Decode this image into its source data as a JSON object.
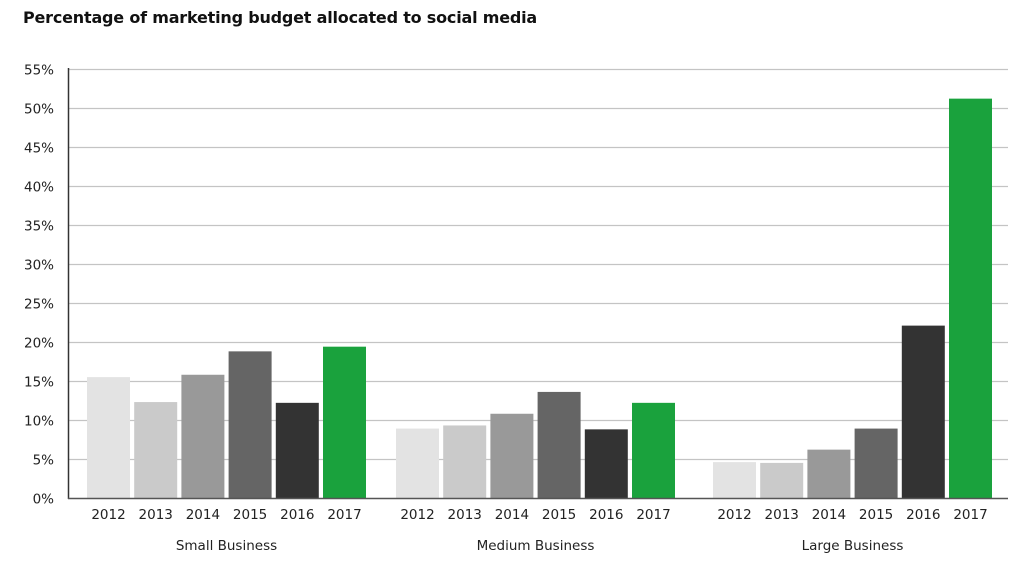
{
  "chart_data": {
    "type": "bar",
    "title": "Percentage of marketing budget allocated to social media",
    "xlabel": "",
    "ylabel": "",
    "ylim": [
      0,
      55
    ],
    "yticks": [
      0,
      5,
      10,
      15,
      20,
      25,
      30,
      35,
      40,
      45,
      50,
      55
    ],
    "ytick_labels": [
      "0%",
      "5%",
      "10%",
      "15%",
      "20%",
      "25%",
      "30%",
      "35%",
      "40%",
      "45%",
      "50%",
      "55%"
    ],
    "grid": true,
    "legend": "none",
    "categories": [
      "Small Business",
      "Medium Business",
      "Large Business"
    ],
    "series": [
      {
        "name": "2012",
        "color": "#e3e3e3",
        "values": [
          15.5,
          8.9,
          4.6
        ]
      },
      {
        "name": "2013",
        "color": "#cacaca",
        "values": [
          12.3,
          9.3,
          4.5
        ]
      },
      {
        "name": "2014",
        "color": "#999999",
        "values": [
          15.8,
          10.8,
          6.2
        ]
      },
      {
        "name": "2015",
        "color": "#656565",
        "values": [
          18.8,
          13.6,
          8.9
        ]
      },
      {
        "name": "2016",
        "color": "#333333",
        "values": [
          12.2,
          8.8,
          22.1
        ]
      },
      {
        "name": "2017",
        "color": "#1aa23d",
        "values": [
          19.4,
          12.2,
          51.2
        ]
      }
    ]
  }
}
